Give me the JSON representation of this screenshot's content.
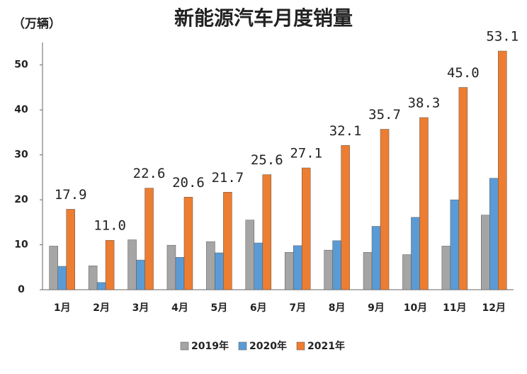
{
  "chart_data": {
    "type": "bar",
    "title": "新能源汽车月度销量",
    "y_label": "（万辆）",
    "categories": [
      "1月",
      "2月",
      "3月",
      "4月",
      "5月",
      "6月",
      "7月",
      "8月",
      "9月",
      "10月",
      "11月",
      "12月"
    ],
    "series": [
      {
        "name": "2019年",
        "color": "#a5a5a5",
        "values": [
          9.7,
          5.3,
          11.1,
          9.9,
          10.7,
          15.5,
          8.3,
          8.8,
          8.3,
          7.8,
          9.7,
          16.6
        ]
      },
      {
        "name": "2020年",
        "color": "#5b9bd5",
        "values": [
          5.2,
          1.6,
          6.6,
          7.2,
          8.2,
          10.4,
          9.8,
          10.9,
          14.1,
          16.1,
          20.0,
          24.8
        ]
      },
      {
        "name": "2021年",
        "color": "#ed7d31",
        "values": [
          17.9,
          11.0,
          22.6,
          20.6,
          21.7,
          25.6,
          27.1,
          32.1,
          35.7,
          38.3,
          45.0,
          53.1
        ],
        "value_labels": [
          "17.9",
          "11.0",
          "22.6",
          "20.6",
          "21.7",
          "25.6",
          "27.1",
          "32.1",
          "35.7",
          "38.3",
          "45.0",
          "53.1"
        ]
      }
    ],
    "ylim": [
      0,
      55
    ],
    "yticks": [
      0,
      10,
      20,
      30,
      40,
      50
    ],
    "grid": false,
    "legend": "bottom"
  }
}
